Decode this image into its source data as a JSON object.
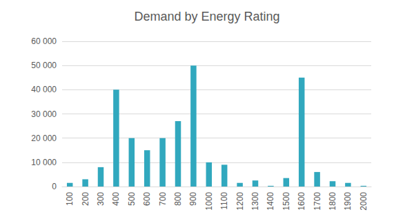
{
  "chart_data": {
    "type": "bar",
    "title": "Demand by Energy Rating",
    "categories": [
      "100",
      "200",
      "300",
      "400",
      "500",
      "600",
      "700",
      "800",
      "900",
      "1000",
      "1100",
      "1200",
      "1300",
      "1400",
      "1500",
      "1600",
      "1700",
      "1800",
      "1900",
      "2000"
    ],
    "values": [
      1500,
      3000,
      8000,
      40000,
      20000,
      15000,
      20000,
      27000,
      50000,
      10000,
      9000,
      1500,
      2500,
      300,
      3500,
      45000,
      6000,
      2200,
      1500,
      300
    ],
    "color": "#31a8be",
    "ylim": [
      0,
      60000
    ],
    "yticks": [
      0,
      {
        "value": 10000,
        "label": "10 000"
      },
      {
        "value": 20000,
        "label": "20 000"
      },
      {
        "value": 30000,
        "label": "30 000"
      },
      {
        "value": 40000,
        "label": "40 000"
      },
      {
        "value": 50000,
        "label": "50 000"
      },
      {
        "value": 60000,
        "label": "60 000"
      }
    ],
    "grid": true
  }
}
